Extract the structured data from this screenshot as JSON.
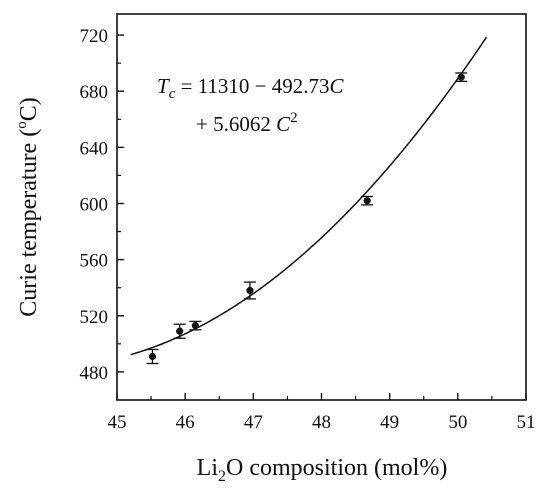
{
  "chart_data": {
    "type": "scatter",
    "xlim": [
      45,
      51
    ],
    "ylim": [
      460,
      735
    ],
    "xticks": [
      45,
      46,
      47,
      48,
      49,
      50,
      51
    ],
    "yticks": [
      480,
      520,
      560,
      600,
      640,
      680,
      720
    ],
    "x_tick_labels": [
      "45",
      "46",
      "47",
      "48",
      "49",
      "50",
      "51"
    ],
    "y_tick_labels": [
      "480",
      "520",
      "560",
      "600",
      "640",
      "680",
      "720"
    ],
    "xlabel": {
      "pre": "Li",
      "sub": "2",
      "post": "O composition (mol%)"
    },
    "ylabel": {
      "pre": "Curie temperature (",
      "sup": "o",
      "post": "C)"
    },
    "grid": false,
    "series": [
      {
        "points": [
          {
            "x": 45.52,
            "y": 491,
            "err": 5
          },
          {
            "x": 45.92,
            "y": 509,
            "err": 5
          },
          {
            "x": 46.15,
            "y": 513,
            "err": 3
          },
          {
            "x": 46.95,
            "y": 538,
            "err": 6
          },
          {
            "x": 48.67,
            "y": 602,
            "err": 3
          },
          {
            "x": 50.05,
            "y": 690,
            "err": 3
          }
        ]
      }
    ],
    "fit": {
      "type": "quadratic",
      "coefficients": [
        11310,
        -492.73,
        5.6062
      ],
      "x_range": [
        45.2,
        50.42
      ]
    },
    "annotation": {
      "line1": {
        "lhs_sym": "T",
        "lhs_sub": "c",
        "rhs": " = 11310 − 492.73",
        "var": "C"
      },
      "line2": {
        "rhs": "+ 5.6062 ",
        "var": "C",
        "sup": "2"
      }
    }
  }
}
